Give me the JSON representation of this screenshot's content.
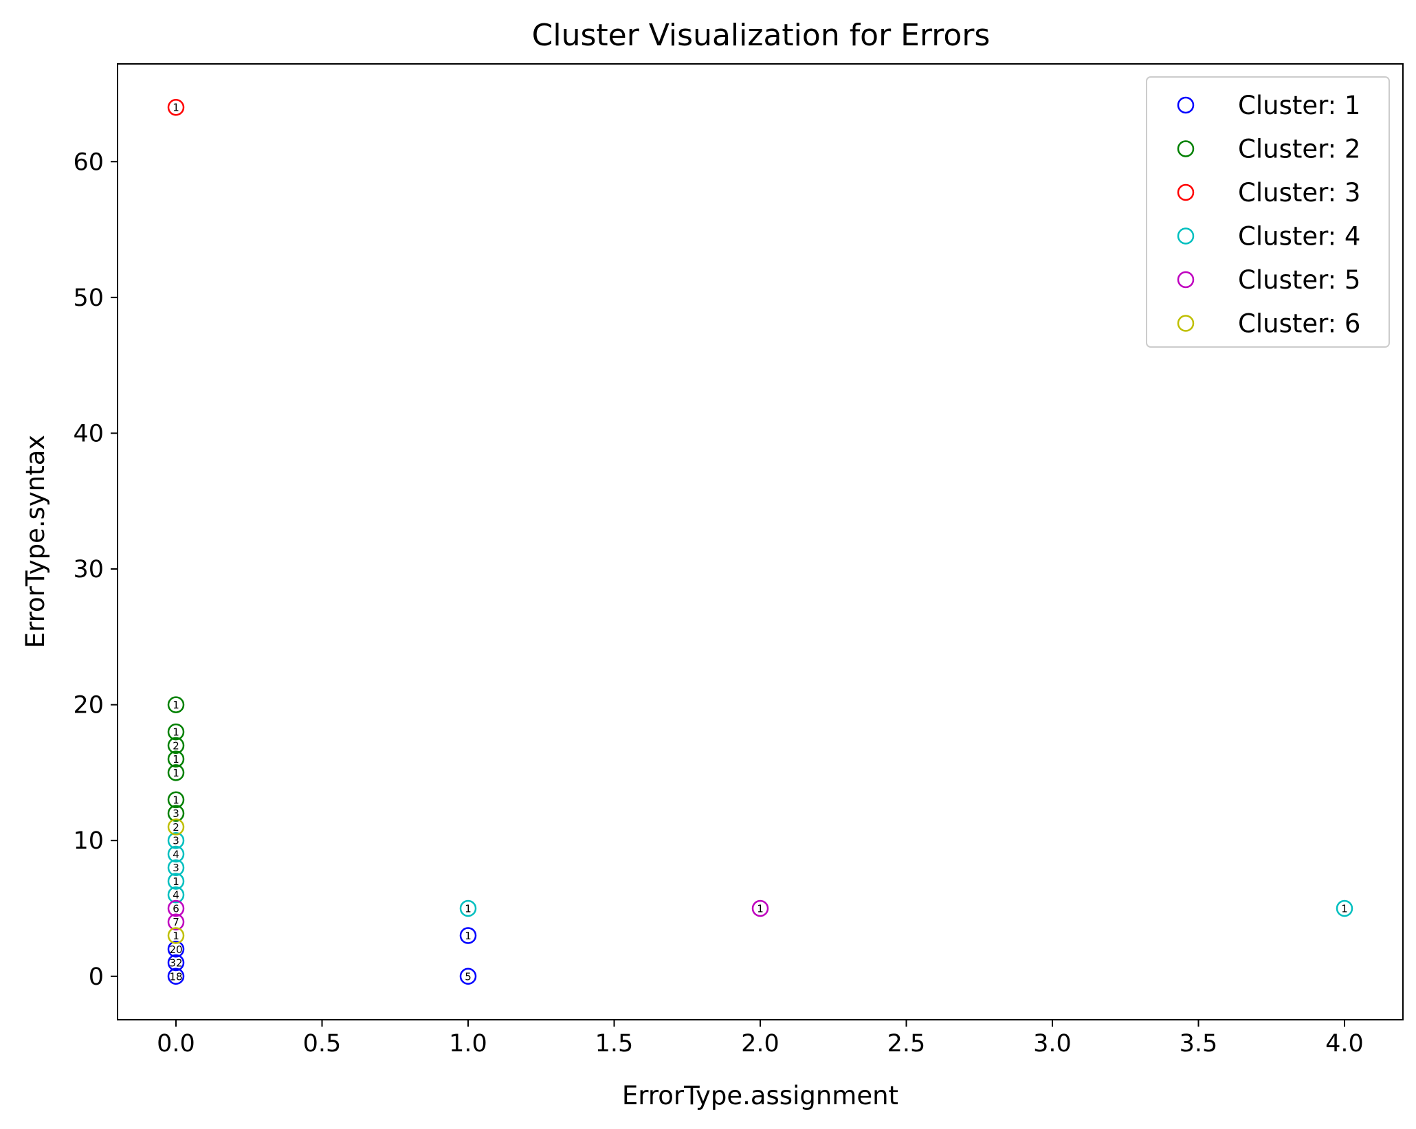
{
  "chart_data": {
    "type": "scatter",
    "title": "Cluster Visualization for Errors",
    "xlabel": "ErrorType.assignment",
    "ylabel": "ErrorType.syntax",
    "xlim": [
      -0.2,
      4.2
    ],
    "ylim": [
      -3.2,
      67.2
    ],
    "x_ticks": [
      0.0,
      0.5,
      1.0,
      1.5,
      2.0,
      2.5,
      3.0,
      3.5,
      4.0
    ],
    "x_tick_labels": [
      "0.0",
      "0.5",
      "1.0",
      "1.5",
      "2.0",
      "2.5",
      "3.0",
      "3.5",
      "4.0"
    ],
    "y_ticks": [
      0,
      10,
      20,
      30,
      40,
      50,
      60
    ],
    "y_tick_labels": [
      "0",
      "10",
      "20",
      "30",
      "40",
      "50",
      "60"
    ],
    "grid": false,
    "legend_position": "top-right",
    "marker": "hollow-circle",
    "series": [
      {
        "name": "Cluster: 1",
        "color": "#0000ff",
        "points": [
          {
            "x": 0,
            "y": 0,
            "label": "18"
          },
          {
            "x": 0,
            "y": 1,
            "label": "32"
          },
          {
            "x": 0,
            "y": 2,
            "label": "20"
          },
          {
            "x": 1,
            "y": 0,
            "label": "5"
          },
          {
            "x": 1,
            "y": 3,
            "label": "1"
          }
        ]
      },
      {
        "name": "Cluster: 2",
        "color": "#008000",
        "points": [
          {
            "x": 0,
            "y": 12,
            "label": "3"
          },
          {
            "x": 0,
            "y": 13,
            "label": "1"
          },
          {
            "x": 0,
            "y": 15,
            "label": "1"
          },
          {
            "x": 0,
            "y": 16,
            "label": "1"
          },
          {
            "x": 0,
            "y": 17,
            "label": "2"
          },
          {
            "x": 0,
            "y": 18,
            "label": "1"
          },
          {
            "x": 0,
            "y": 20,
            "label": "1"
          }
        ]
      },
      {
        "name": "Cluster: 3",
        "color": "#ff0000",
        "points": [
          {
            "x": 0,
            "y": 64,
            "label": "1"
          }
        ]
      },
      {
        "name": "Cluster: 4",
        "color": "#00bfbf",
        "points": [
          {
            "x": 0,
            "y": 6,
            "label": "4"
          },
          {
            "x": 0,
            "y": 7,
            "label": "1"
          },
          {
            "x": 0,
            "y": 8,
            "label": "3"
          },
          {
            "x": 0,
            "y": 9,
            "label": "4"
          },
          {
            "x": 0,
            "y": 10,
            "label": "3"
          },
          {
            "x": 1,
            "y": 5,
            "label": "1"
          },
          {
            "x": 4,
            "y": 5,
            "label": "1"
          }
        ]
      },
      {
        "name": "Cluster: 5",
        "color": "#bf00bf",
        "points": [
          {
            "x": 0,
            "y": 4,
            "label": "7"
          },
          {
            "x": 0,
            "y": 5,
            "label": "6"
          },
          {
            "x": 2,
            "y": 5,
            "label": "1"
          }
        ]
      },
      {
        "name": "Cluster: 6",
        "color": "#bfbf00",
        "points": [
          {
            "x": 0,
            "y": 3,
            "label": "1"
          },
          {
            "x": 0,
            "y": 11,
            "label": "2"
          }
        ]
      }
    ]
  }
}
